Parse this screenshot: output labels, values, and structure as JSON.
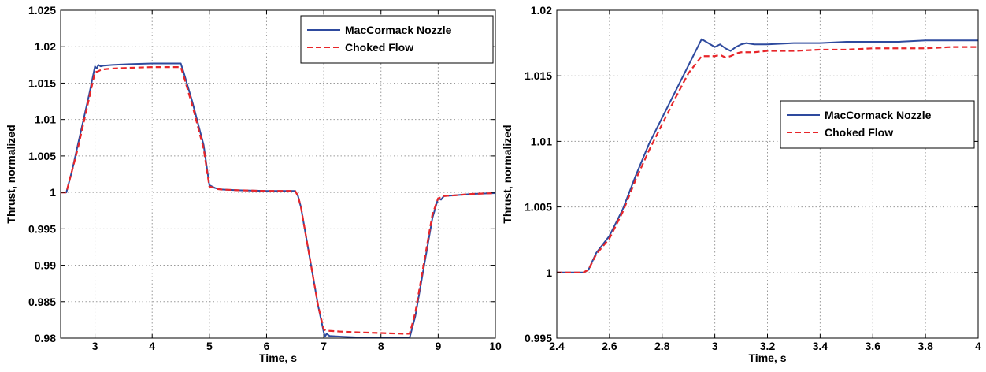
{
  "chart_data": [
    {
      "type": "line",
      "xlabel": "Time, s",
      "ylabel": "Thrust, normalized",
      "xlim": [
        2.4,
        10
      ],
      "ylim": [
        0.98,
        1.025
      ],
      "xticks": [
        3,
        4,
        5,
        6,
        7,
        8,
        9,
        10
      ],
      "xtick_labels": [
        "3",
        "4",
        "5",
        "6",
        "7",
        "8",
        "9",
        "10"
      ],
      "yticks": [
        0.98,
        0.985,
        0.99,
        0.995,
        1.0,
        1.005,
        1.01,
        1.015,
        1.02,
        1.025
      ],
      "ytick_labels": [
        "0.98",
        "0.985",
        "0.99",
        "0.995",
        "1",
        "1.005",
        "1.01",
        "1.015",
        "1.02",
        "1.025"
      ],
      "grid": true,
      "legend_position": "top-right",
      "series": [
        {
          "name": "MacCormack Nozzle",
          "color": "#2e4a9e",
          "style": "solid",
          "x": [
            2.4,
            2.5,
            2.55,
            2.6,
            2.7,
            2.8,
            2.9,
            3.0,
            3.03,
            3.06,
            3.1,
            3.15,
            3.3,
            3.6,
            4.0,
            4.3,
            4.5,
            4.55,
            4.7,
            4.9,
            5.0,
            5.05,
            5.1,
            5.2,
            5.5,
            6.0,
            6.5,
            6.55,
            6.6,
            6.7,
            6.8,
            6.9,
            7.0,
            7.02,
            7.05,
            7.1,
            7.3,
            7.6,
            8.0,
            8.4,
            8.5,
            8.55,
            8.6,
            8.7,
            8.8,
            8.9,
            9.0,
            9.05,
            9.1,
            9.3,
            9.6,
            10.0
          ],
          "y": [
            1.0,
            1.0,
            1.0015,
            1.003,
            1.0065,
            1.01,
            1.0135,
            1.0173,
            1.017,
            1.0175,
            1.0173,
            1.0174,
            1.0175,
            1.0176,
            1.0177,
            1.0177,
            1.0177,
            1.0165,
            1.0125,
            1.0065,
            1.001,
            1.0008,
            1.0006,
            1.0004,
            1.0003,
            1.0002,
            1.0002,
            0.9995,
            0.998,
            0.9935,
            0.989,
            0.9845,
            0.9808,
            0.9802,
            0.9806,
            0.9803,
            0.9802,
            0.9801,
            0.98,
            0.98,
            0.98,
            0.9815,
            0.983,
            0.9875,
            0.992,
            0.9965,
            0.9992,
            0.999,
            0.9995,
            0.9996,
            0.9998,
            0.9999
          ]
        },
        {
          "name": "Choked Flow",
          "color": "#e8262a",
          "style": "dashed",
          "x": [
            2.4,
            2.5,
            2.55,
            2.6,
            2.7,
            2.8,
            2.9,
            3.0,
            3.05,
            3.1,
            3.15,
            3.3,
            3.6,
            4.0,
            4.3,
            4.5,
            4.55,
            4.7,
            4.9,
            5.0,
            5.05,
            5.1,
            5.2,
            5.5,
            6.0,
            6.5,
            6.55,
            6.6,
            6.7,
            6.8,
            6.9,
            7.0,
            7.05,
            7.1,
            7.3,
            7.6,
            8.0,
            8.4,
            8.5,
            8.55,
            8.6,
            8.7,
            8.8,
            8.9,
            9.0,
            9.05,
            9.1,
            9.3,
            9.6,
            10.0
          ],
          "y": [
            1.0,
            1.0,
            1.0015,
            1.003,
            1.006,
            1.0095,
            1.013,
            1.0165,
            1.0166,
            1.0168,
            1.0169,
            1.017,
            1.0171,
            1.0172,
            1.0172,
            1.0172,
            1.016,
            1.012,
            1.006,
            1.0008,
            1.0007,
            1.0005,
            1.0004,
            1.0003,
            1.0002,
            1.0002,
            0.9995,
            0.998,
            0.9935,
            0.989,
            0.9845,
            0.9812,
            0.981,
            0.981,
            0.9809,
            0.9808,
            0.9807,
            0.9806,
            0.9806,
            0.982,
            0.9835,
            0.988,
            0.9925,
            0.997,
            0.9992,
            0.9993,
            0.9995,
            0.9996,
            0.9998,
            0.9999
          ]
        }
      ]
    },
    {
      "type": "line",
      "xlabel": "Time, s",
      "ylabel": "Thrust, normalized",
      "xlim": [
        2.4,
        4
      ],
      "ylim": [
        0.995,
        1.02
      ],
      "xticks": [
        2.4,
        2.6,
        2.8,
        3.0,
        3.2,
        3.4,
        3.6,
        3.8,
        4.0
      ],
      "xtick_labels": [
        "2.4",
        "2.6",
        "2.8",
        "3",
        "3.2",
        "3.4",
        "3.6",
        "3.8",
        "4"
      ],
      "yticks": [
        0.995,
        1.0,
        1.005,
        1.01,
        1.015,
        1.02
      ],
      "ytick_labels": [
        "0.995",
        "1",
        "1.005",
        "1.01",
        "1.015",
        "1.02"
      ],
      "grid": true,
      "legend_position": "center-right",
      "series": [
        {
          "name": "MacCormack Nozzle",
          "color": "#2e4a9e",
          "style": "solid",
          "x": [
            2.4,
            2.5,
            2.52,
            2.55,
            2.6,
            2.65,
            2.7,
            2.75,
            2.8,
            2.85,
            2.9,
            2.95,
            3.0,
            3.02,
            3.04,
            3.06,
            3.08,
            3.1,
            3.12,
            3.15,
            3.2,
            3.3,
            3.4,
            3.5,
            3.6,
            3.7,
            3.8,
            3.9,
            4.0
          ],
          "y": [
            1.0,
            1.0,
            1.0002,
            1.0015,
            1.0028,
            1.0048,
            1.0074,
            1.0098,
            1.0118,
            1.0138,
            1.0158,
            1.0178,
            1.0172,
            1.0174,
            1.0171,
            1.0169,
            1.0172,
            1.0174,
            1.0175,
            1.0174,
            1.0174,
            1.0175,
            1.0175,
            1.0176,
            1.0176,
            1.0176,
            1.0177,
            1.0177,
            1.0177
          ]
        },
        {
          "name": "Choked Flow",
          "color": "#e8262a",
          "style": "dashed",
          "x": [
            2.4,
            2.5,
            2.52,
            2.55,
            2.6,
            2.65,
            2.7,
            2.75,
            2.8,
            2.85,
            2.9,
            2.95,
            3.0,
            3.02,
            3.04,
            3.06,
            3.08,
            3.1,
            3.15,
            3.2,
            3.3,
            3.4,
            3.5,
            3.6,
            3.7,
            3.8,
            3.9,
            4.0
          ],
          "y": [
            1.0,
            1.0,
            1.0002,
            1.0014,
            1.0026,
            1.0046,
            1.0071,
            1.0093,
            1.0113,
            1.0133,
            1.0152,
            1.0165,
            1.0165,
            1.0166,
            1.0164,
            1.0165,
            1.0167,
            1.0168,
            1.0168,
            1.0169,
            1.0169,
            1.017,
            1.017,
            1.0171,
            1.0171,
            1.0171,
            1.0172,
            1.0172
          ]
        }
      ]
    }
  ]
}
